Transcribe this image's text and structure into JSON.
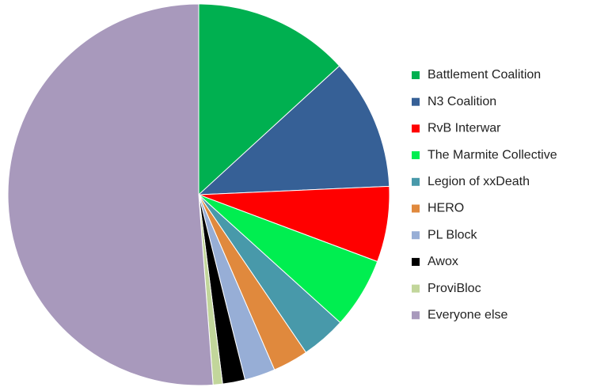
{
  "chart_data": {
    "type": "pie",
    "categories": [
      "Battlement Coalition",
      "N3 Coalition",
      "RvB Interwar",
      "The Marmite Collective",
      "Legion of xxDeath",
      "HERO",
      "PL Block",
      "Awox",
      "ProviBloc",
      "Everyone else"
    ],
    "values": [
      13.2,
      11.1,
      6.4,
      6.0,
      3.8,
      3.0,
      2.6,
      1.9,
      0.8,
      51.2
    ],
    "colors": [
      "#00b050",
      "#366096",
      "#ff0000",
      "#00ee50",
      "#4899aa",
      "#e0893d",
      "#97aed6",
      "#000000",
      "#c2d69b",
      "#a899bc"
    ],
    "legend": "right"
  }
}
